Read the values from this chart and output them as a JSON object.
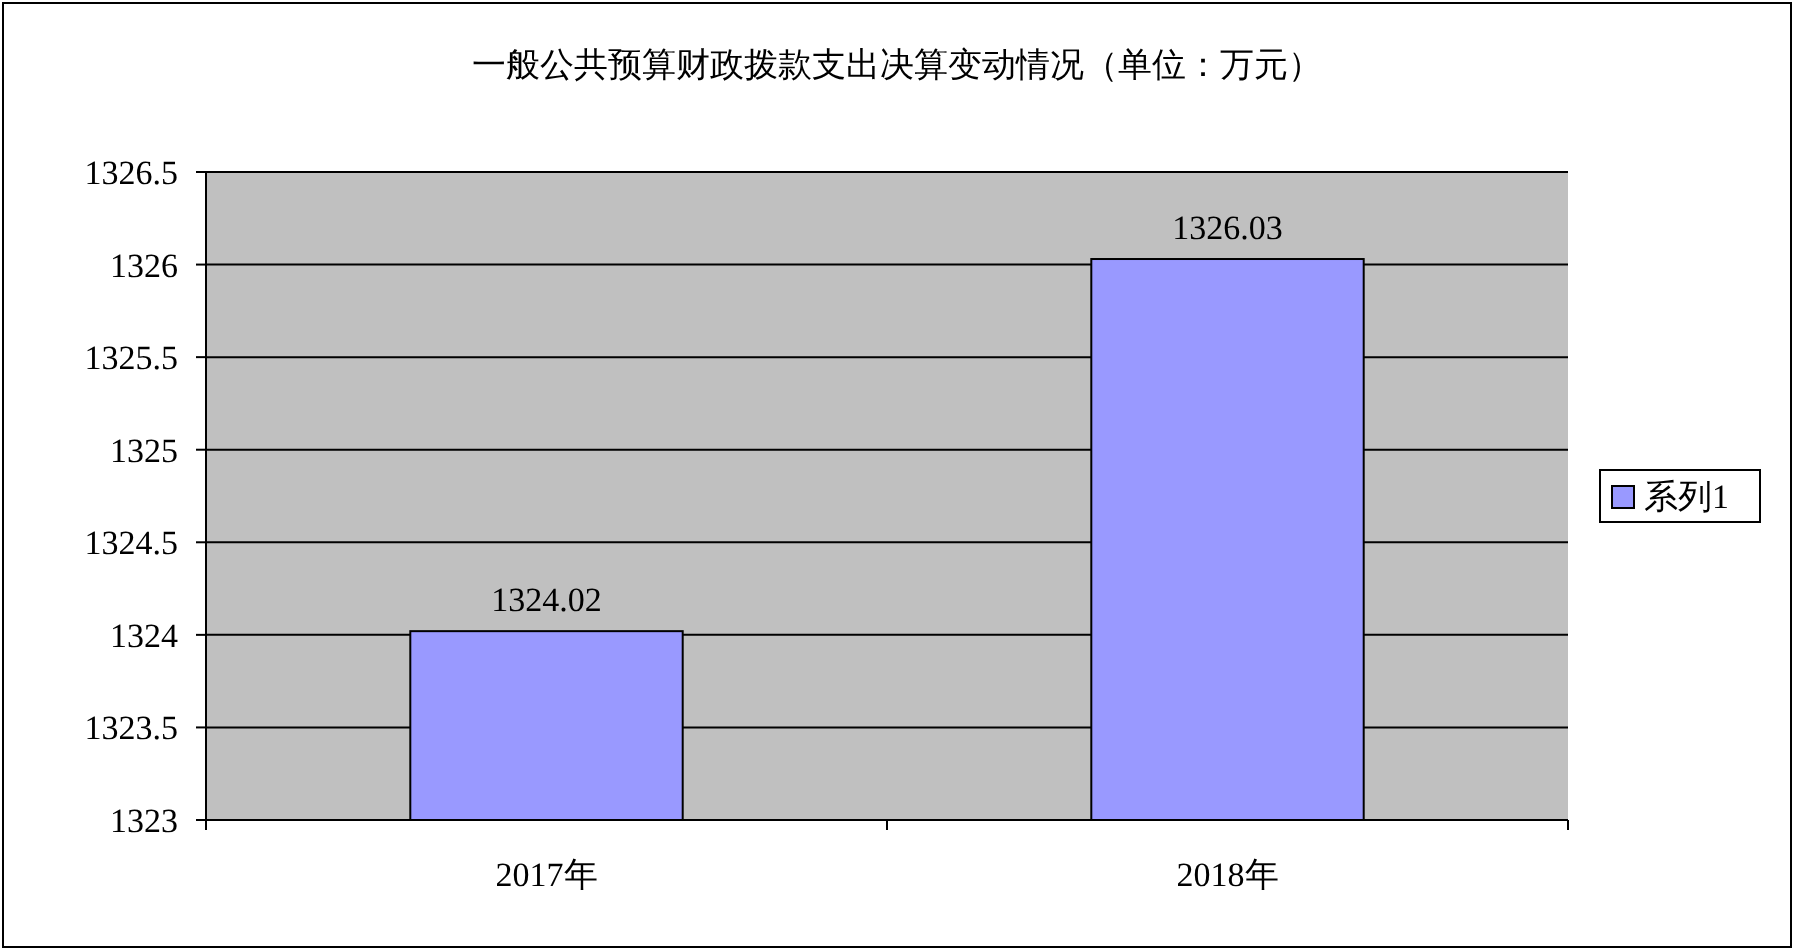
{
  "chart_data": {
    "type": "bar",
    "title": "一般公共预算财政拨款支出决算变动情况（单位：万元）",
    "categories": [
      "2017年",
      "2018年"
    ],
    "series": [
      {
        "name": "系列1",
        "color": "#9999ff",
        "values": [
          1324.02,
          1326.03
        ]
      }
    ],
    "ylim": [
      1323,
      1326.5
    ],
    "yticks": [
      1323,
      1323.5,
      1324,
      1324.5,
      1325,
      1325.5,
      1326,
      1326.5
    ],
    "grid": "y",
    "legend": "right",
    "data_labels": true
  }
}
